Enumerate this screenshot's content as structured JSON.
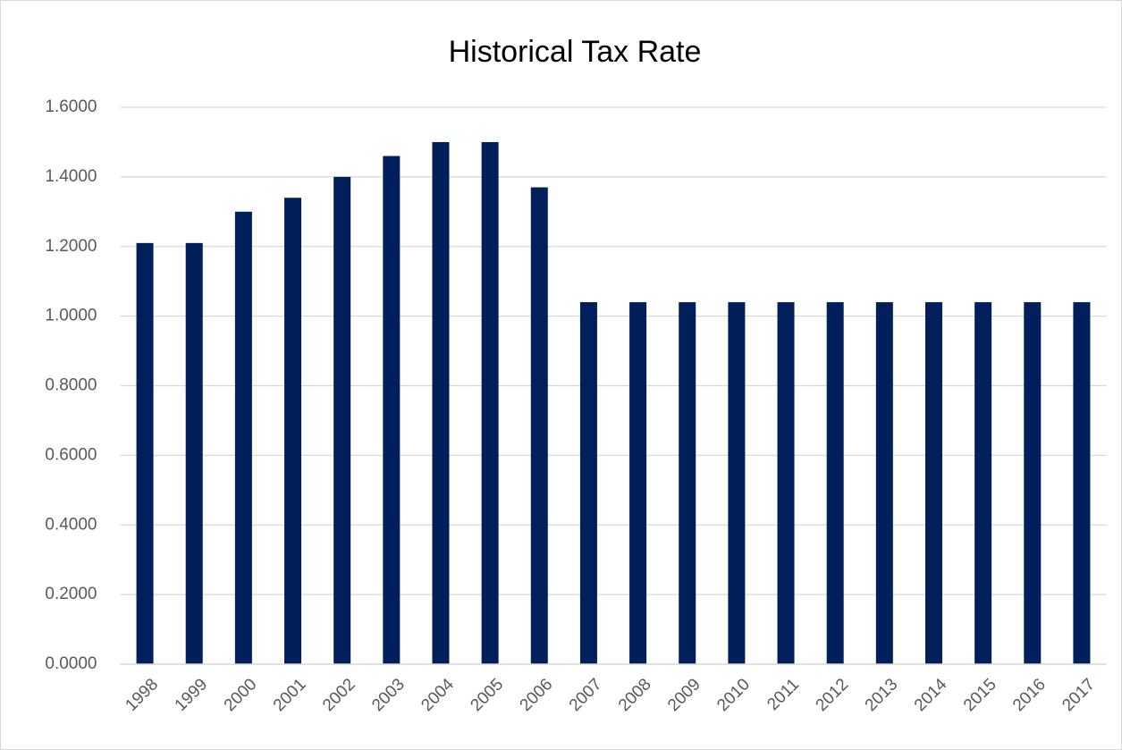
{
  "chart_data": {
    "type": "bar",
    "title": "Historical Tax Rate",
    "categories": [
      "1998",
      "1999",
      "2000",
      "2001",
      "2002",
      "2003",
      "2004",
      "2005",
      "2006",
      "2007",
      "2008",
      "2009",
      "2010",
      "2011",
      "2012",
      "2013",
      "2014",
      "2015",
      "2016",
      "2017"
    ],
    "values": [
      1.21,
      1.21,
      1.3,
      1.34,
      1.4,
      1.46,
      1.5,
      1.5,
      1.37,
      1.04,
      1.04,
      1.04,
      1.04,
      1.04,
      1.04,
      1.04,
      1.04,
      1.04,
      1.04,
      1.04
    ],
    "color": "#001f5b",
    "ylim": [
      0,
      1.6
    ],
    "yticks": [
      {
        "value": 0,
        "label": "0.0000"
      },
      {
        "value": 0.2,
        "label": "0.2000"
      },
      {
        "value": 0.4,
        "label": "0.4000"
      },
      {
        "value": 0.6,
        "label": "0.6000"
      },
      {
        "value": 0.8,
        "label": "0.8000"
      },
      {
        "value": 1.0,
        "label": "1.0000"
      },
      {
        "value": 1.2,
        "label": "1.2000"
      },
      {
        "value": 1.4,
        "label": "1.4000"
      },
      {
        "value": 1.6,
        "label": "1.6000"
      }
    ],
    "grid": true
  }
}
